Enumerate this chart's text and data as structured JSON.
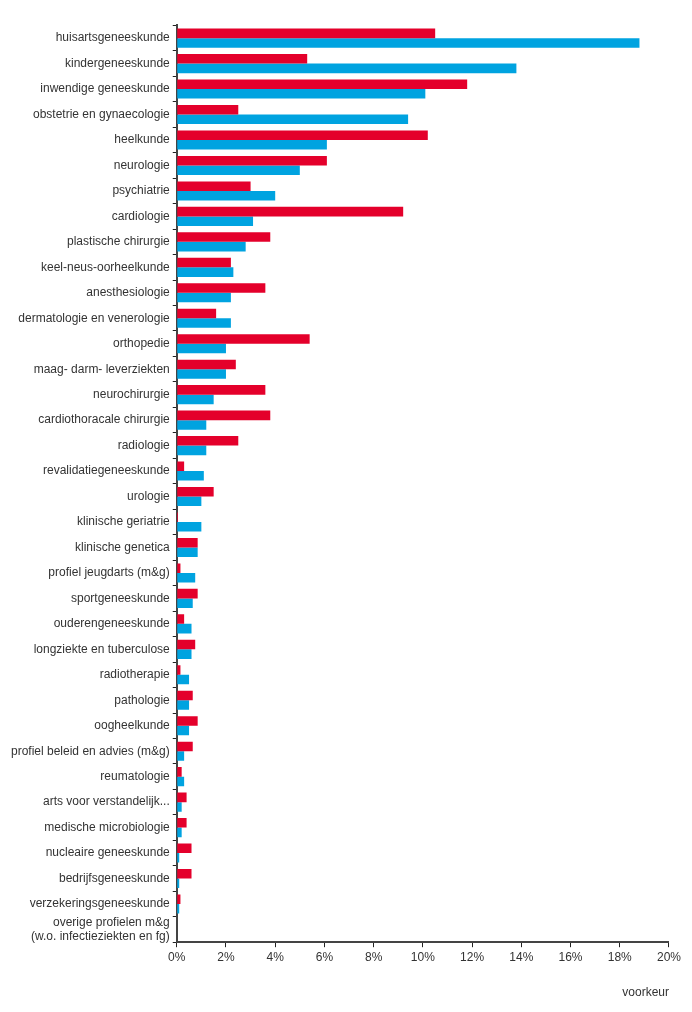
{
  "chart_data": {
    "type": "bar",
    "orientation": "horizontal",
    "xlabel": "voorkeur",
    "categories": [
      "huisartsgeneeskunde",
      "kindergeneeskunde",
      "inwendige geneeskunde",
      "obstetrie en gynaecologie",
      "heelkunde",
      "neurologie",
      "psychiatrie",
      "cardiologie",
      "plastische chirurgie",
      "keel-neus-oorheelkunde",
      "anesthesiologie",
      "dermatologie en venerologie",
      "orthopedie",
      "maag- darm- leverziekten",
      "neurochirurgie",
      "cardiothoracale chirurgie",
      "radiologie",
      "revalidatiegeneeskunde",
      "urologie",
      "klinische geriatrie",
      "klinische genetica",
      "profiel jeugdarts (m&g)",
      "sportgeneeskunde",
      "ouderengeneeskunde",
      "longziekte en tuberculose",
      "radiotherapie",
      "pathologie",
      "oogheelkunde",
      "profiel beleid en advies (m&g)",
      "reumatologie",
      "arts voor verstandelijk...",
      "medische microbiologie",
      "nucleaire geneeskunde",
      "bedrijfsgeneeskunde",
      "verzekeringsgeneeskunde",
      "overige profielen m&g\n(w.o. infectieziekten en fg)"
    ],
    "series": [
      {
        "color": "#e4002b",
        "values": [
          10.5,
          5.3,
          11.8,
          2.5,
          10.2,
          6.1,
          3.0,
          9.2,
          3.8,
          2.2,
          3.6,
          1.6,
          5.4,
          2.4,
          3.6,
          3.8,
          2.5,
          0.3,
          1.5,
          0.05,
          0.85,
          0.15,
          0.85,
          0.3,
          0.75,
          0.15,
          0.65,
          0.85,
          0.65,
          0.2,
          0.4,
          0.4,
          0.6,
          0.6,
          0.15,
          0
        ]
      },
      {
        "color": "#00a3e0",
        "values": [
          18.8,
          13.8,
          10.1,
          9.4,
          6.1,
          5.0,
          4.0,
          3.1,
          2.8,
          2.3,
          2.2,
          2.2,
          2.0,
          2.0,
          1.5,
          1.2,
          1.2,
          1.1,
          1.0,
          1.0,
          0.85,
          0.75,
          0.65,
          0.6,
          0.6,
          0.5,
          0.5,
          0.5,
          0.3,
          0.3,
          0.2,
          0.2,
          0.1,
          0.1,
          0.1,
          0
        ]
      }
    ],
    "xlim": [
      0,
      20
    ],
    "xticks": [
      {
        "value": 0,
        "label": "0%"
      },
      {
        "value": 2,
        "label": "2%"
      },
      {
        "value": 4,
        "label": "4%"
      },
      {
        "value": 6,
        "label": "6%"
      },
      {
        "value": 8,
        "label": "8%"
      },
      {
        "value": 10,
        "label": "10%"
      },
      {
        "value": 12,
        "label": "12%"
      },
      {
        "value": 14,
        "label": "14%"
      },
      {
        "value": 16,
        "label": "16%"
      },
      {
        "value": 18,
        "label": "18%"
      },
      {
        "value": 20,
        "label": "20%"
      }
    ],
    "grid": false,
    "legend": false
  }
}
